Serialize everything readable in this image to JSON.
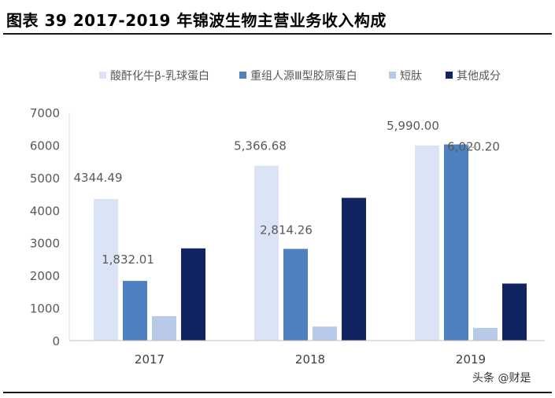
{
  "header": {
    "title": "图表 39 2017-2019 年锦波生物主营业务收入构成"
  },
  "watermark": "头条 @财是",
  "chart_data": {
    "type": "bar",
    "title": "",
    "xlabel": "",
    "ylabel": "",
    "categories": [
      "2017",
      "2018",
      "2019"
    ],
    "ylim": [
      0,
      7000
    ],
    "yticks": [
      0,
      1000,
      2000,
      3000,
      4000,
      5000,
      6000,
      7000
    ],
    "grid": false,
    "legend_position": "top",
    "series": [
      {
        "name": "酸酐化牛β-乳球蛋白",
        "color": "#dbe4f5",
        "values": [
          4344.49,
          5366.68,
          5990.0
        ],
        "labels": [
          "4344.49",
          "5,366.68",
          "5,990.00"
        ]
      },
      {
        "name": "重组人源Ⅲ型胶原蛋白",
        "color": "#4f81c0",
        "values": [
          1832.01,
          2814.26,
          6020.2
        ],
        "labels": [
          "1,832.01",
          "2,814.26",
          "6,020.20"
        ]
      },
      {
        "name": "短肽",
        "color": "#b8c9ea",
        "values": [
          750,
          430,
          390
        ],
        "labels": [
          "",
          "",
          ""
        ]
      },
      {
        "name": "其他成分",
        "color": "#0f2460",
        "values": [
          2830,
          4380,
          1750
        ],
        "labels": [
          "",
          "",
          ""
        ]
      }
    ]
  }
}
